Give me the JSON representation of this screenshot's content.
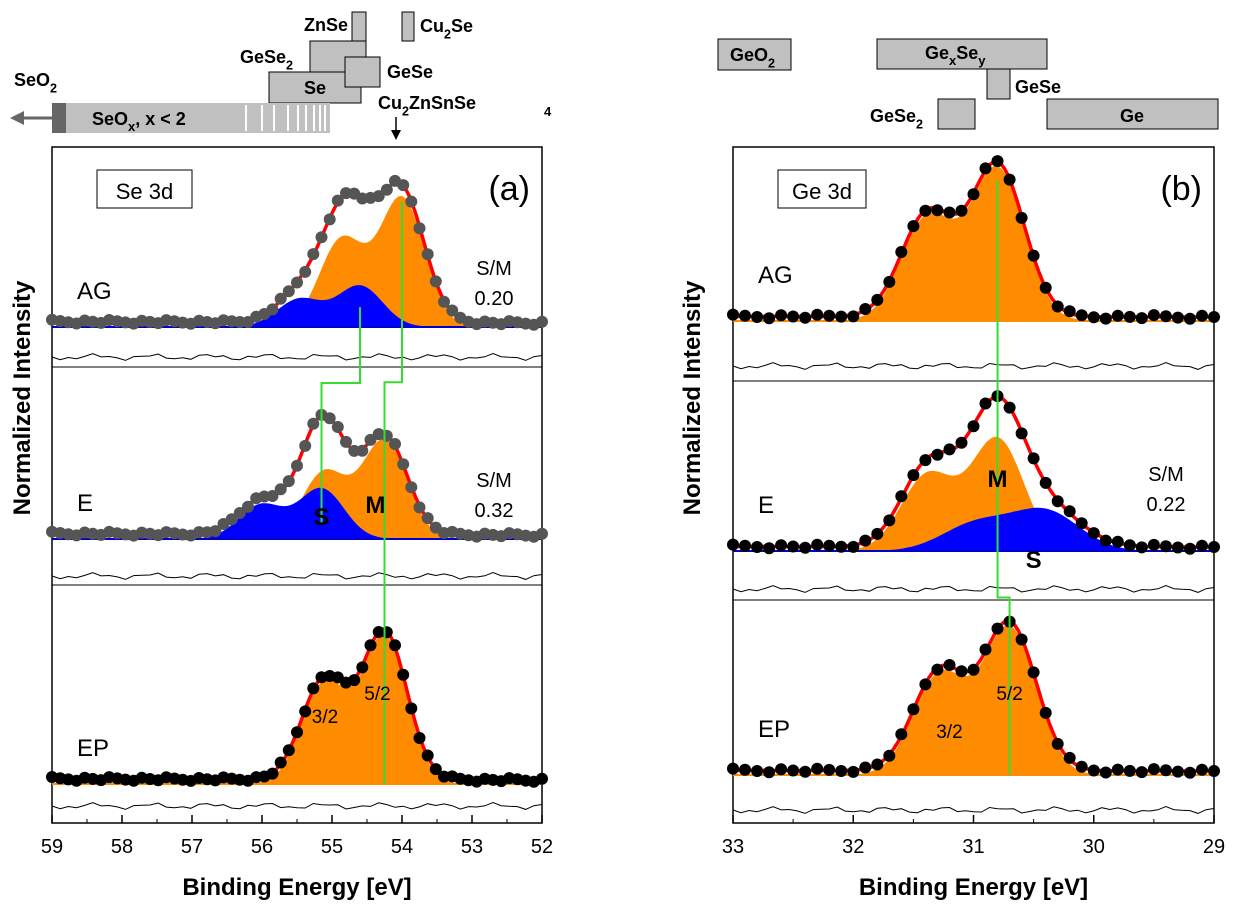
{
  "ylabel": "Normalized Intensity",
  "charts": [
    {
      "panel": "(a)",
      "tag": "Se 3d",
      "xlabel": "Binding Energy [eV]",
      "x_range": [
        59,
        52
      ],
      "x_ticks": [
        "59",
        "58",
        "57",
        "56",
        "55",
        "54",
        "53",
        "52"
      ],
      "rows": [
        {
          "label": "AG",
          "ratio_title": "S/M",
          "ratio_value": "0.20",
          "peak_M": 54.0,
          "has_S": true,
          "peak_S": 54.6
        },
        {
          "label": "E",
          "ratio_title": "S/M",
          "ratio_value": "0.32",
          "peak_M": 54.25,
          "has_S": true,
          "peak_S": 55.15
        },
        {
          "label": "EP",
          "ratio_title": "",
          "ratio_value": "",
          "peak_M": 54.25,
          "has_S": false,
          "peak_S": null
        }
      ],
      "component_labels": {
        "S": "S",
        "M": "M",
        "j32": "3/2",
        "j52": "5/2"
      },
      "references": [
        {
          "name": "ZnSe",
          "range": [
            54.7,
            54.6
          ]
        },
        {
          "name": "Cu2Se",
          "range": [
            53.9,
            53.8
          ]
        },
        {
          "name": "GeSe2",
          "range": [
            55.4,
            54.6
          ]
        },
        {
          "name": "Se",
          "range": [
            55.8,
            54.6
          ]
        },
        {
          "name": "GeSe",
          "range": [
            54.95,
            54.6
          ]
        },
        {
          "name": "SeOx, x < 2",
          "range": [
            58.95,
            54.9
          ]
        },
        {
          "name": "SeO2",
          "range": [
            59.0,
            58.9
          ]
        },
        {
          "name": "Cu2ZnSnSe4",
          "range": [
            54.05,
            54.05
          ]
        }
      ]
    },
    {
      "panel": "(b)",
      "tag": "Ge 3d",
      "xlabel": "Binding Energy [eV]",
      "x_range": [
        33,
        29
      ],
      "x_ticks": [
        "33",
        "32",
        "31",
        "30",
        "29"
      ],
      "rows": [
        {
          "label": "AG",
          "ratio_title": "",
          "ratio_value": "",
          "peak_M": 30.8,
          "has_S": false,
          "peak_S": null
        },
        {
          "label": "E",
          "ratio_title": "S/M",
          "ratio_value": "0.22",
          "peak_M": 30.8,
          "has_S": true,
          "peak_S": 30.4
        },
        {
          "label": "EP",
          "ratio_title": "",
          "ratio_value": "",
          "peak_M": 30.7,
          "has_S": false,
          "peak_S": null
        }
      ],
      "component_labels": {
        "S": "S",
        "M": "M",
        "j32": "3/2",
        "j52": "5/2"
      },
      "references": [
        {
          "name": "GeO2",
          "range": [
            33.0,
            32.6
          ]
        },
        {
          "name": "GexSey",
          "range": [
            31.8,
            30.4
          ]
        },
        {
          "name": "GeSe",
          "range": [
            30.9,
            30.75
          ]
        },
        {
          "name": "GeSe2",
          "range": [
            31.2,
            31.0
          ]
        },
        {
          "name": "Ge",
          "range": [
            30.4,
            29.05
          ]
        }
      ]
    }
  ]
}
